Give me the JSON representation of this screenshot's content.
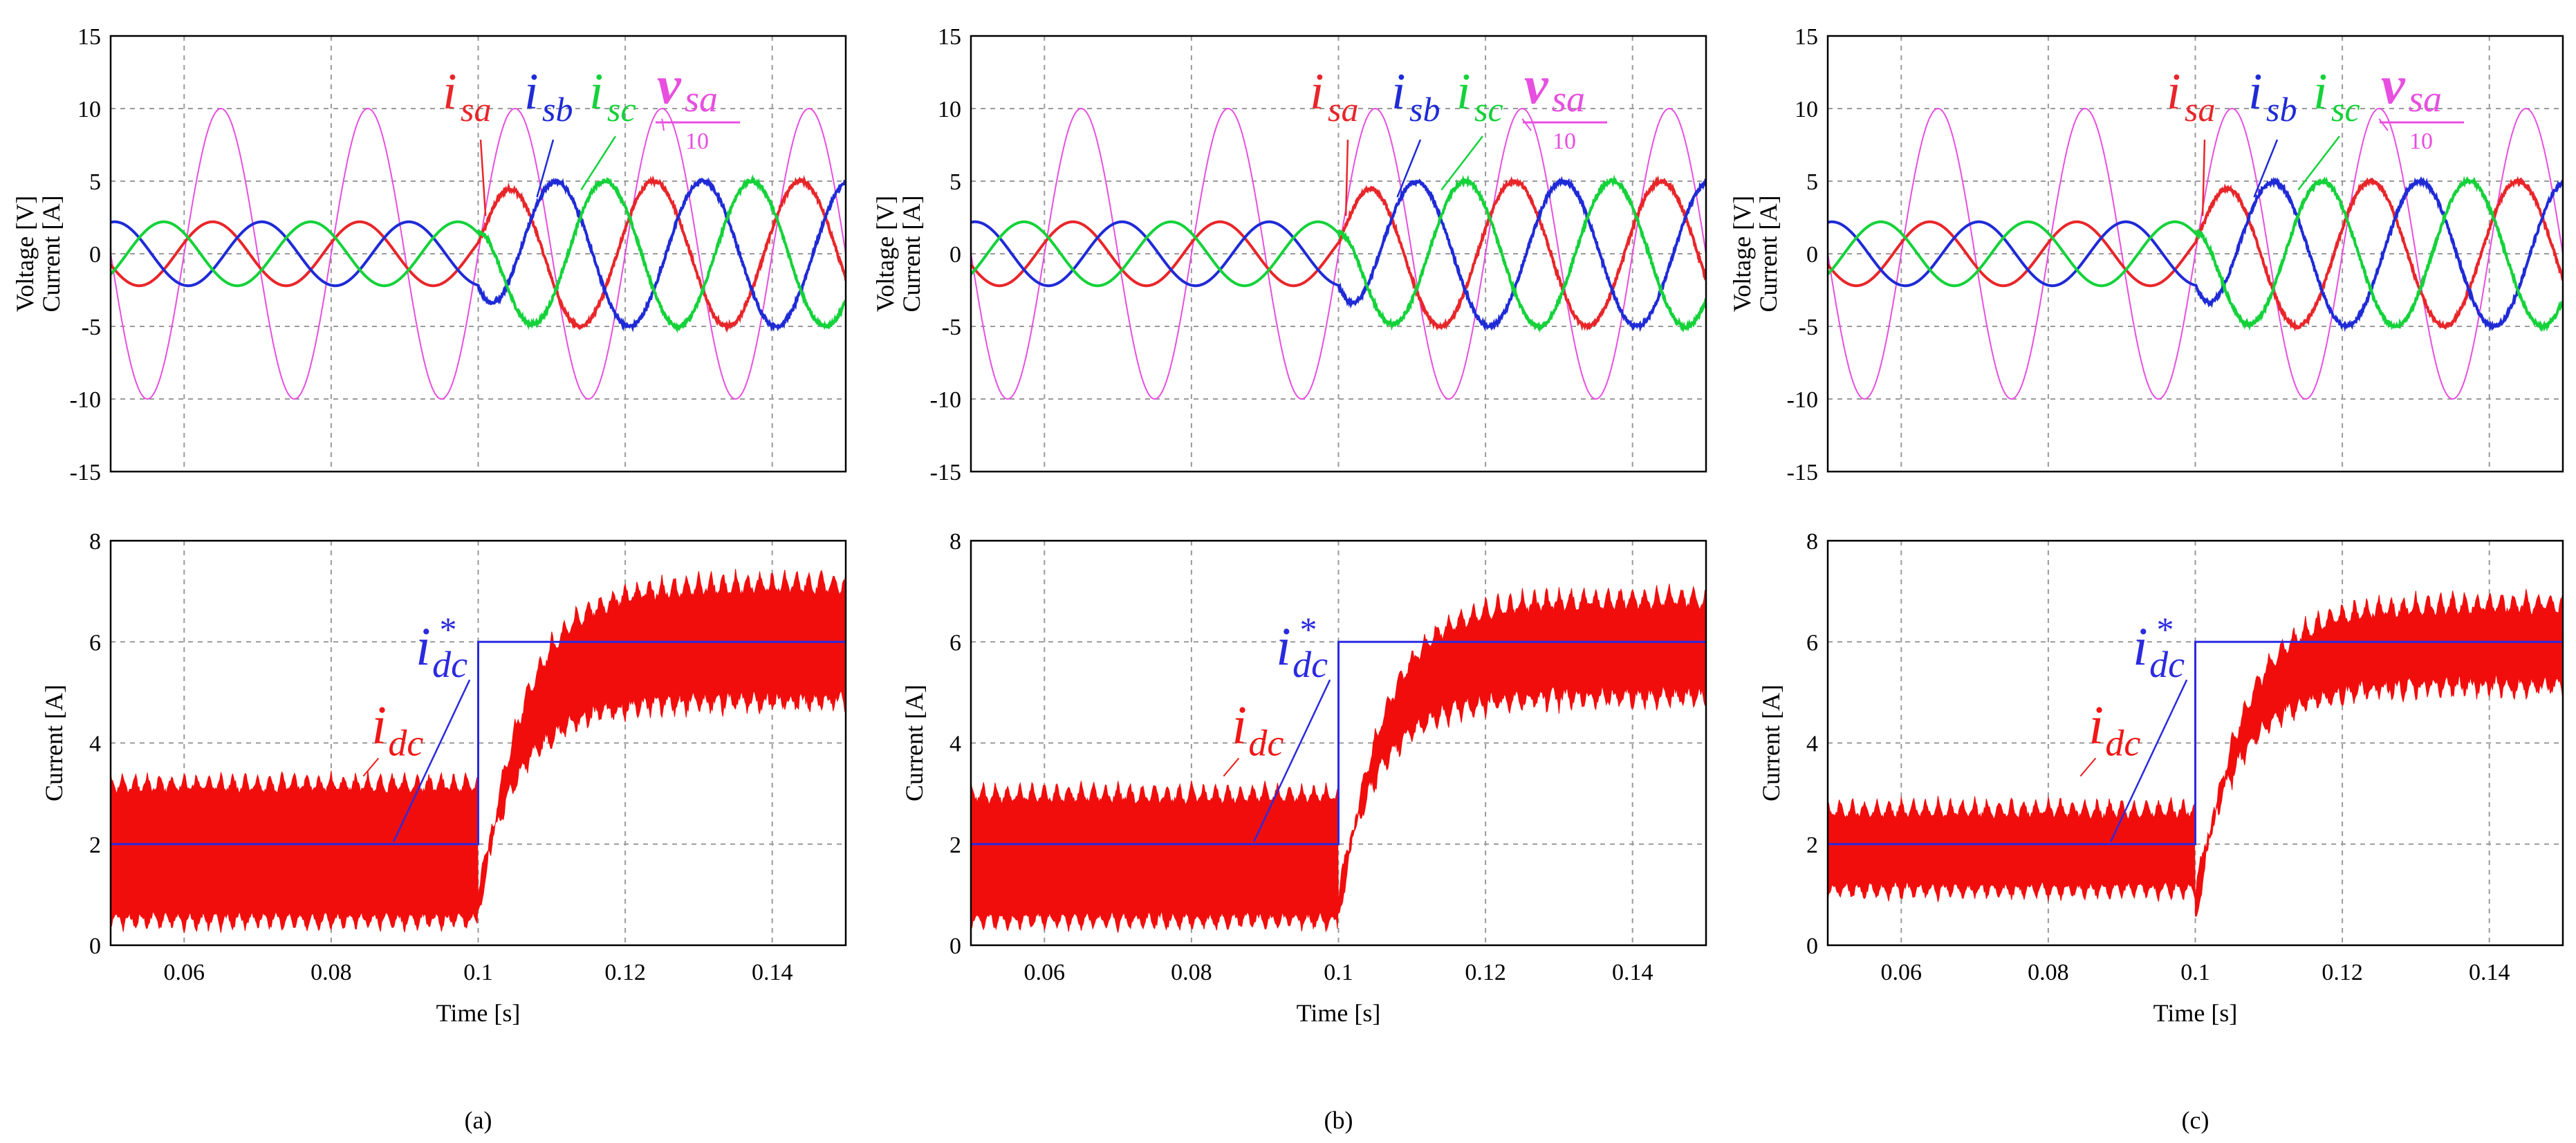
{
  "chart_data": [
    {
      "id": "a-top",
      "type": "line",
      "ylabel_lines": [
        "Voltage [V]",
        "Current [A]"
      ],
      "xlim": [
        0.05,
        0.15
      ],
      "ylim": [
        -15,
        15
      ],
      "yticks": [
        15,
        10,
        5,
        0,
        -5,
        -10,
        -15
      ],
      "ytick_labels": [
        "15",
        "10",
        "5",
        "0",
        "-5",
        "-10",
        "-15"
      ],
      "xgrid": [
        0.06,
        0.08,
        0.1,
        0.12,
        0.14
      ],
      "step_time": 0.1,
      "frequency": 50,
      "series": [
        {
          "name": "isa",
          "color": "#e8262a",
          "amp_before": 2.2,
          "amp_after": 5.0,
          "phase_deg": 0
        },
        {
          "name": "isb",
          "color": "#1f2bd6",
          "amp_before": 2.2,
          "amp_after": 5.0,
          "phase_deg": -120
        },
        {
          "name": "isc",
          "color": "#14d23a",
          "amp_before": 2.2,
          "amp_after": 5.0,
          "phase_deg": 120
        },
        {
          "name": "vsa/10",
          "color": "#e84fe0",
          "amp_before": 10,
          "amp_after": 10,
          "phase_deg": 0
        }
      ],
      "annotations": [
        "i",
        "sa",
        "i",
        "sb",
        "i",
        "sc",
        "v",
        "sa",
        "10"
      ]
    },
    {
      "id": "a-bottom",
      "type": "area",
      "ylabel": "Current [A]",
      "xlabel": "Time [s]",
      "xlim": [
        0.05,
        0.15
      ],
      "ylim": [
        0,
        8
      ],
      "yticks": [
        8,
        6,
        4,
        2,
        0
      ],
      "ytick_labels": [
        "8",
        "6",
        "4",
        "2",
        "0"
      ],
      "xticks": [
        0.06,
        0.08,
        0.1,
        0.12,
        0.14
      ],
      "xtick_labels": [
        "0.06",
        "0.08",
        "0.1",
        "0.12",
        "0.14"
      ],
      "reference": {
        "name": "idc*",
        "before": 2,
        "after": 6,
        "step_time": 0.1
      },
      "measured": {
        "name": "idc",
        "before_low": 0.3,
        "before_high": 3.4,
        "after_low": 4.6,
        "after_high": 7.4
      },
      "annotations": [
        "i",
        "dc",
        "i",
        "dc",
        "*"
      ],
      "caption": "(a)"
    },
    {
      "id": "b-top",
      "type": "line",
      "ylabel_lines": [
        "Voltage [V]",
        "Current [A]"
      ],
      "xlim": [
        0.05,
        0.15
      ],
      "ylim": [
        -15,
        15
      ],
      "yticks": [
        15,
        10,
        5,
        0,
        -5,
        -10,
        -15
      ],
      "ytick_labels": [
        "15",
        "10",
        "5",
        "0",
        "-5",
        "-10",
        "-15"
      ],
      "xgrid": [
        0.06,
        0.08,
        0.1,
        0.12,
        0.14
      ],
      "step_time": 0.1,
      "frequency": 50,
      "series": [
        {
          "name": "isa",
          "color": "#e8262a",
          "amp_before": 2.2,
          "amp_after": 5.0,
          "phase_deg": 0
        },
        {
          "name": "isb",
          "color": "#1f2bd6",
          "amp_before": 2.2,
          "amp_after": 5.0,
          "phase_deg": -120
        },
        {
          "name": "isc",
          "color": "#14d23a",
          "amp_before": 2.2,
          "amp_after": 5.0,
          "phase_deg": 120
        },
        {
          "name": "vsa/10",
          "color": "#e84fe0",
          "amp_before": 10,
          "amp_after": 10,
          "phase_deg": 0
        }
      ],
      "annotations": [
        "i",
        "sa",
        "i",
        "sb",
        "i",
        "sc",
        "v",
        "sa",
        "10"
      ]
    },
    {
      "id": "b-bottom",
      "type": "area",
      "ylabel": "Current [A]",
      "xlabel": "Time [s]",
      "xlim": [
        0.05,
        0.15
      ],
      "ylim": [
        0,
        8
      ],
      "yticks": [
        8,
        6,
        4,
        2,
        0
      ],
      "ytick_labels": [
        "8",
        "6",
        "4",
        "2",
        "0"
      ],
      "xticks": [
        0.06,
        0.08,
        0.1,
        0.12,
        0.14
      ],
      "xtick_labels": [
        "0.06",
        "0.08",
        "0.1",
        "0.12",
        "0.14"
      ],
      "reference": {
        "name": "idc*",
        "before": 2,
        "after": 6,
        "step_time": 0.1
      },
      "measured": {
        "name": "idc",
        "before_low": 0.3,
        "before_high": 3.2,
        "after_low": 4.7,
        "after_high": 7.1
      },
      "annotations": [
        "i",
        "dc",
        "i",
        "dc",
        "*"
      ],
      "caption": "(b)"
    },
    {
      "id": "c-top",
      "type": "line",
      "ylabel_lines": [
        "Voltage [V]",
        "Current [A]"
      ],
      "xlim": [
        0.05,
        0.15
      ],
      "ylim": [
        -15,
        15
      ],
      "yticks": [
        15,
        10,
        5,
        0,
        -5,
        -10,
        -15
      ],
      "ytick_labels": [
        "15",
        "10",
        "5",
        "0",
        "-5",
        "-10",
        "-15"
      ],
      "xgrid": [
        0.06,
        0.08,
        0.1,
        0.12,
        0.14
      ],
      "step_time": 0.1,
      "frequency": 50,
      "series": [
        {
          "name": "isa",
          "color": "#e8262a",
          "amp_before": 2.2,
          "amp_after": 5.0,
          "phase_deg": 0
        },
        {
          "name": "isb",
          "color": "#1f2bd6",
          "amp_before": 2.2,
          "amp_after": 5.0,
          "phase_deg": -120
        },
        {
          "name": "isc",
          "color": "#14d23a",
          "amp_before": 2.2,
          "amp_after": 5.0,
          "phase_deg": 120
        },
        {
          "name": "vsa/10",
          "color": "#e84fe0",
          "amp_before": 10,
          "amp_after": 10,
          "phase_deg": 0
        }
      ],
      "annotations": [
        "i",
        "sa",
        "i",
        "sb",
        "i",
        "sc",
        "v",
        "sa",
        "10"
      ]
    },
    {
      "id": "c-bottom",
      "type": "area",
      "ylabel": "Current [A]",
      "xlabel": "Time [s]",
      "xlim": [
        0.05,
        0.15
      ],
      "ylim": [
        0,
        8
      ],
      "yticks": [
        8,
        6,
        4,
        2,
        0
      ],
      "ytick_labels": [
        "8",
        "6",
        "4",
        "2",
        "0"
      ],
      "xticks": [
        0.06,
        0.08,
        0.1,
        0.12,
        0.14
      ],
      "xtick_labels": [
        "0.06",
        "0.08",
        "0.1",
        "0.12",
        "0.14"
      ],
      "reference": {
        "name": "idc*",
        "before": 2,
        "after": 6,
        "step_time": 0.1
      },
      "measured": {
        "name": "idc",
        "before_low": 0.9,
        "before_high": 2.9,
        "after_low": 4.9,
        "after_high": 7.0
      },
      "annotations": [
        "i",
        "dc",
        "i",
        "dc",
        "*"
      ],
      "caption": "(c)"
    }
  ]
}
